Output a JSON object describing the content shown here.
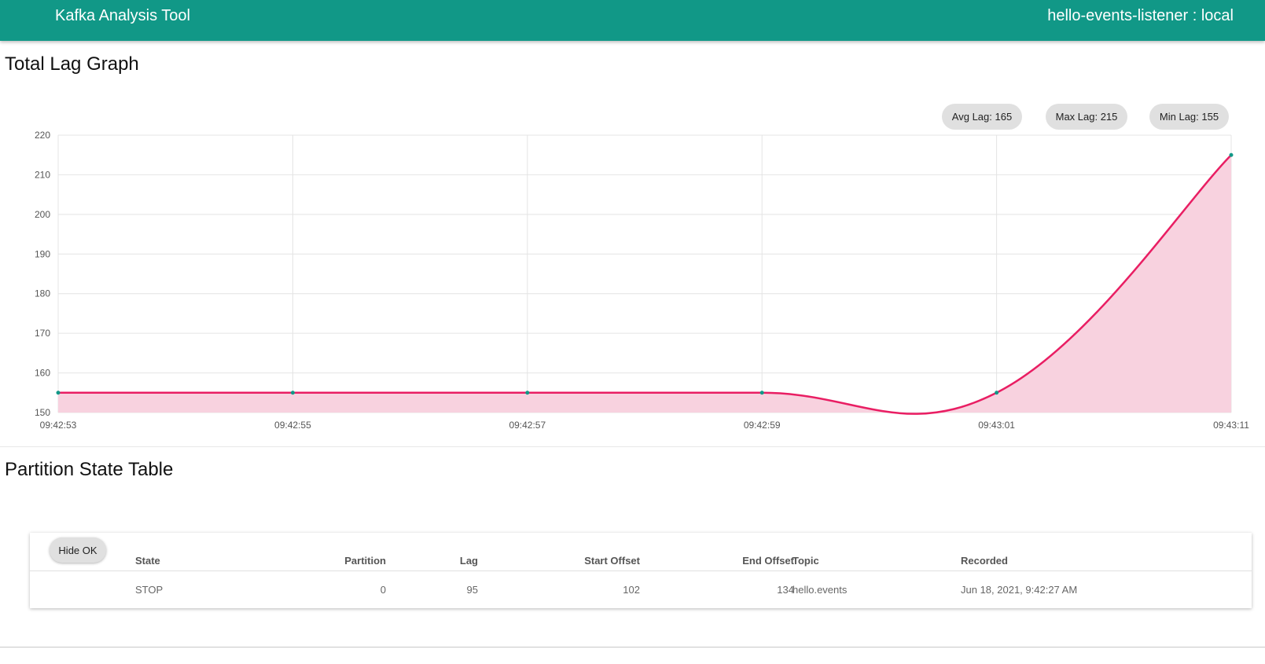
{
  "header": {
    "title": "Kafka Analysis Tool",
    "context": "hello-events-listener : local",
    "color": "#119887"
  },
  "lag_section": {
    "title": "Total Lag Graph",
    "stats": {
      "avg": "Avg Lag: 165",
      "max": "Max Lag: 215",
      "min": "Min Lag: 155"
    }
  },
  "chart_data": {
    "type": "area",
    "x": [
      "09:42:53",
      "09:42:55",
      "09:42:57",
      "09:42:59",
      "09:43:01",
      "09:43:11"
    ],
    "series": [
      {
        "values": [
          155,
          155,
          155,
          155,
          155,
          215
        ],
        "color": "#e91e63",
        "fill": "#f8d2df",
        "point_color": "#119887"
      }
    ],
    "ylim": [
      150,
      220
    ],
    "yticks": [
      150,
      160,
      170,
      180,
      190,
      200,
      210,
      220
    ],
    "grid": true,
    "smooth": true
  },
  "table_section": {
    "title": "Partition State Table",
    "hide_button": "Hide OK",
    "columns": [
      "State",
      "Partition",
      "Lag",
      "Start Offset",
      "End Offset",
      "Topic",
      "Recorded"
    ],
    "rows": [
      [
        "STOP",
        "0",
        "95",
        "102",
        "134",
        "hello.events",
        "Jun 18, 2021, 9:42:27 AM"
      ]
    ]
  }
}
